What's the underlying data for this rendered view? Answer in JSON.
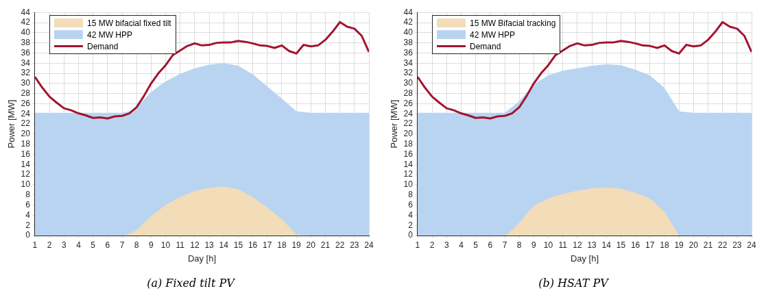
{
  "chart_data": [
    {
      "type": "area",
      "title": "(a) Fixed tilt PV",
      "xlabel": "Day [h]",
      "ylabel": "Power [MW]",
      "xlim": [
        1,
        24
      ],
      "xticks": [
        1,
        2,
        3,
        4,
        5,
        6,
        7,
        8,
        9,
        10,
        11,
        12,
        13,
        14,
        15,
        16,
        17,
        18,
        19,
        20,
        21,
        22,
        23,
        24
      ],
      "ylim": [
        0,
        44
      ],
      "yticks": [
        0,
        2,
        4,
        6,
        8,
        10,
        12,
        14,
        16,
        18,
        20,
        22,
        24,
        26,
        28,
        30,
        32,
        34,
        36,
        38,
        40,
        42,
        44
      ],
      "grid": true,
      "legend": "top left",
      "series": [
        {
          "name": "15 MW bifacial fixed tilt",
          "color": "#f2ddb8",
          "x": [
            1,
            7,
            7.2,
            8,
            9,
            10,
            11,
            12,
            13,
            14,
            15,
            16,
            17,
            18,
            19,
            20,
            24
          ],
          "values": [
            0,
            0,
            0,
            1,
            3.8,
            6,
            7.6,
            8.8,
            9.4,
            9.7,
            9.1,
            7.6,
            5.5,
            3.2,
            0.2,
            0,
            0
          ]
        },
        {
          "name": "42 MW HPP",
          "color": "#b9d4f1",
          "x": [
            1,
            7,
            7.5,
            8,
            8.5,
            9,
            9.5,
            10,
            11,
            12,
            13,
            14,
            15,
            16,
            17,
            18,
            19,
            20,
            24
          ],
          "values": [
            24.2,
            24.2,
            24.5,
            25.3,
            26.8,
            28.3,
            29.4,
            30.4,
            31.9,
            33,
            33.7,
            34,
            33.5,
            31.8,
            29.4,
            27,
            24.5,
            24.2,
            24.2
          ]
        },
        {
          "name": "Demand",
          "type": "line",
          "color": "#a2142f",
          "x": [
            1,
            1.5,
            2,
            2.5,
            3,
            3.5,
            4,
            4.5,
            5,
            5.5,
            6,
            6.5,
            7,
            7.5,
            8,
            8.5,
            9,
            9.5,
            10,
            10.5,
            11,
            11.5,
            12,
            12.5,
            13,
            13.5,
            14,
            14.5,
            15,
            15.5,
            16,
            16.5,
            17,
            17.5,
            18,
            18.5,
            19,
            19.5,
            20,
            20.5,
            21,
            21.5,
            22,
            22.5,
            23,
            23.5,
            24
          ],
          "values": [
            31.3,
            29.2,
            27.4,
            26.2,
            25.1,
            24.7,
            24.1,
            23.7,
            23.2,
            23.3,
            23.1,
            23.5,
            23.6,
            24.1,
            25.3,
            27.5,
            30,
            32,
            33.6,
            35.6,
            36.5,
            37.4,
            37.9,
            37.5,
            37.6,
            38,
            38.1,
            38.1,
            38.4,
            38.2,
            37.9,
            37.5,
            37.4,
            37,
            37.5,
            36.4,
            35.9,
            37.6,
            37.3,
            37.5,
            38.6,
            40.2,
            42.1,
            41.2,
            40.8,
            39.4,
            36.2
          ]
        }
      ]
    },
    {
      "type": "area",
      "title": "(b) HSAT PV",
      "xlabel": "Day [h]",
      "ylabel": "Power [MW]",
      "xlim": [
        1,
        24
      ],
      "xticks": [
        1,
        2,
        3,
        4,
        5,
        6,
        7,
        8,
        9,
        10,
        11,
        12,
        13,
        14,
        15,
        16,
        17,
        18,
        19,
        20,
        21,
        22,
        23,
        24
      ],
      "ylim": [
        0,
        44
      ],
      "yticks": [
        0,
        2,
        4,
        6,
        8,
        10,
        12,
        14,
        16,
        18,
        20,
        22,
        24,
        26,
        28,
        30,
        32,
        34,
        36,
        38,
        40,
        42,
        44
      ],
      "grid": true,
      "legend": "top left",
      "series": [
        {
          "name": "15 MW Bifacial tracking",
          "color": "#f2ddb8",
          "x": [
            1,
            7,
            7.1,
            8,
            9,
            10,
            11,
            12,
            13,
            14,
            15,
            16,
            17,
            18,
            19,
            20,
            24
          ],
          "values": [
            0,
            0,
            0,
            2.5,
            5.9,
            7.3,
            8.2,
            8.8,
            9.3,
            9.5,
            9.3,
            8.4,
            7.3,
            4.7,
            0,
            0,
            0
          ]
        },
        {
          "name": "42 MW HPP",
          "color": "#b9d4f1",
          "x": [
            1,
            7,
            8,
            9,
            10,
            11,
            12,
            13,
            14,
            15,
            16,
            17,
            18,
            19,
            20,
            24
          ],
          "values": [
            24.2,
            24.2,
            26.5,
            29.8,
            31.6,
            32.5,
            33,
            33.5,
            33.8,
            33.6,
            32.7,
            31.6,
            29.1,
            24.5,
            24.2,
            24.2
          ]
        },
        {
          "name": "Demand",
          "type": "line",
          "color": "#a2142f",
          "x": [
            1,
            1.5,
            2,
            2.5,
            3,
            3.5,
            4,
            4.5,
            5,
            5.5,
            6,
            6.5,
            7,
            7.5,
            8,
            8.5,
            9,
            9.5,
            10,
            10.5,
            11,
            11.5,
            12,
            12.5,
            13,
            13.5,
            14,
            14.5,
            15,
            15.5,
            16,
            16.5,
            17,
            17.5,
            18,
            18.5,
            19,
            19.5,
            20,
            20.5,
            21,
            21.5,
            22,
            22.5,
            23,
            23.5,
            24
          ],
          "values": [
            31.3,
            29.2,
            27.4,
            26.2,
            25.1,
            24.7,
            24.1,
            23.7,
            23.2,
            23.3,
            23.1,
            23.5,
            23.6,
            24.1,
            25.3,
            27.5,
            30,
            32,
            33.6,
            35.6,
            36.5,
            37.4,
            37.9,
            37.5,
            37.6,
            38,
            38.1,
            38.1,
            38.4,
            38.2,
            37.9,
            37.5,
            37.4,
            37,
            37.5,
            36.4,
            35.9,
            37.6,
            37.3,
            37.5,
            38.6,
            40.2,
            42.1,
            41.2,
            40.8,
            39.4,
            36.2
          ]
        }
      ]
    }
  ]
}
